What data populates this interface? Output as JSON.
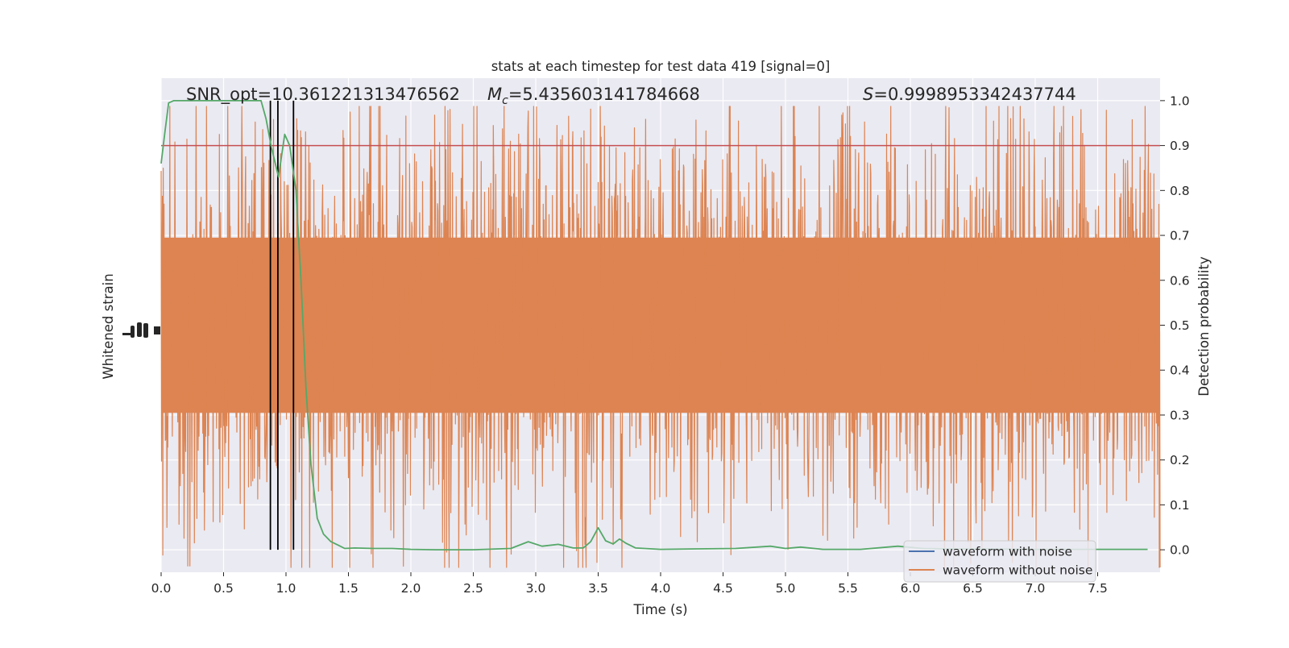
{
  "figure": {
    "title": "stats at each timestep for test data 419 [signal=0]",
    "annotations": {
      "snr": "SNR_opt=10.361221313476562",
      "mc_symbol": "M",
      "mc_subscript": "c",
      "mc_value": "=5.435603141784668",
      "s_symbol": "S",
      "s_value": "=0.9998953342437744"
    }
  },
  "chart_data": {
    "type": "line",
    "title": "stats at each timestep for test data 419 [signal=0]",
    "xlabel": "Time (s)",
    "ylabel_left": "Whitened strain",
    "ylabel_right": "Detection probability",
    "xlim": [
      0.0,
      8.0
    ],
    "ylim_right": [
      -0.05,
      1.05
    ],
    "x_ticks": [
      "0.0",
      "0.5",
      "1.0",
      "1.5",
      "2.0",
      "2.5",
      "3.0",
      "3.5",
      "4.0",
      "4.5",
      "5.0",
      "5.5",
      "6.0",
      "6.5",
      "7.0",
      "7.5"
    ],
    "y_ticks_right": [
      "0.0",
      "0.1",
      "0.2",
      "0.3",
      "0.4",
      "0.5",
      "0.6",
      "0.7",
      "0.8",
      "0.9",
      "1.0"
    ],
    "grid": true,
    "legend_position": "lower-right",
    "threshold": 0.9,
    "event_lines_x": [
      0.875,
      0.935,
      1.06
    ],
    "colors": {
      "noise_series": "#4c72b0",
      "clean_series": "#dd8452",
      "probability": "#55a868",
      "threshold": "#c44e52",
      "event_lines": "#000000",
      "axes_background": "#eaeaf2",
      "grid": "#ffffff"
    },
    "series": [
      {
        "name": "waveform with noise",
        "color": "#4c72b0"
      },
      {
        "name": "waveform without noise",
        "color": "#dd8452"
      }
    ],
    "probability": {
      "x": [
        0.0,
        0.03,
        0.06,
        0.1,
        0.2,
        0.3,
        0.4,
        0.5,
        0.6,
        0.7,
        0.8,
        0.84,
        0.88,
        0.94,
        0.99,
        1.03,
        1.08,
        1.12,
        1.16,
        1.2,
        1.25,
        1.3,
        1.36,
        1.42,
        1.47,
        1.55,
        1.7,
        1.85,
        2.0,
        2.2,
        2.5,
        2.8,
        2.94,
        3.05,
        3.18,
        3.3,
        3.38,
        3.44,
        3.5,
        3.56,
        3.62,
        3.67,
        3.72,
        3.8,
        4.0,
        4.3,
        4.6,
        4.88,
        5.0,
        5.12,
        5.3,
        5.6,
        5.9,
        6.1,
        6.3,
        6.6,
        7.0,
        7.4,
        7.9
      ],
      "y": [
        0.86,
        0.93,
        0.995,
        1.0,
        1.0,
        1.0,
        1.0,
        1.0,
        1.0,
        1.0,
        1.0,
        0.96,
        0.9,
        0.83,
        0.925,
        0.9,
        0.8,
        0.6,
        0.36,
        0.19,
        0.07,
        0.035,
        0.018,
        0.01,
        0.003,
        0.004,
        0.003,
        0.003,
        0.001,
        0.0,
        0.0,
        0.003,
        0.018,
        0.008,
        0.012,
        0.004,
        0.004,
        0.018,
        0.049,
        0.02,
        0.013,
        0.024,
        0.015,
        0.004,
        0.001,
        0.002,
        0.003,
        0.008,
        0.003,
        0.006,
        0.001,
        0.001,
        0.008,
        0.003,
        0.002,
        0.002,
        0.001,
        0.001,
        0.001
      ]
    }
  }
}
